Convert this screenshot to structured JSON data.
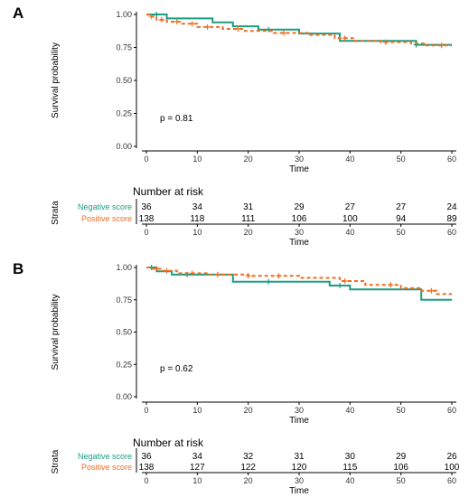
{
  "chart_data": [
    {
      "panel_label": "A",
      "type": "line",
      "subtype": "kaplan-meier",
      "xlabel": "Time",
      "ylabel": "Survival probability",
      "xlim": [
        0,
        60
      ],
      "ylim": [
        0,
        1
      ],
      "x_ticks": [
        0,
        10,
        20,
        30,
        40,
        50,
        60
      ],
      "y_ticks": [
        "0.00",
        "0.25",
        "0.50",
        "0.75",
        "1.00"
      ],
      "grid": false,
      "annotation": "p = 0.81",
      "series": [
        {
          "name": "Negative score",
          "color": "#1a9e82",
          "line_style": "solid",
          "steps": [
            [
              0,
              1.0
            ],
            [
              4,
              0.97
            ],
            [
              13,
              0.94
            ],
            [
              17,
              0.91
            ],
            [
              22,
              0.885
            ],
            [
              30,
              0.855
            ],
            [
              38,
              0.8
            ],
            [
              53,
              0.77
            ],
            [
              60,
              0.77
            ]
          ],
          "censor_x": [
            2,
            24,
            53
          ]
        },
        {
          "name": "Positive score",
          "color": "#f26d21",
          "line_style": "dashed",
          "steps": [
            [
              0,
              1.0
            ],
            [
              1,
              0.985
            ],
            [
              2,
              0.96
            ],
            [
              4,
              0.945
            ],
            [
              7,
              0.93
            ],
            [
              10,
              0.905
            ],
            [
              15,
              0.89
            ],
            [
              19,
              0.875
            ],
            [
              25,
              0.86
            ],
            [
              32,
              0.845
            ],
            [
              37,
              0.82
            ],
            [
              41,
              0.8
            ],
            [
              46,
              0.79
            ],
            [
              52,
              0.78
            ],
            [
              55,
              0.765
            ],
            [
              60,
              0.765
            ]
          ],
          "censor_x": [
            1,
            3,
            6,
            9,
            12,
            18,
            27,
            39,
            47,
            58
          ]
        }
      ],
      "risk_table": {
        "title": "Number at risk",
        "strata_label": "Strata",
        "xlabel": "Time",
        "times": [
          0,
          10,
          20,
          30,
          40,
          50,
          60
        ],
        "rows": [
          {
            "name": "Negative score",
            "color": "#1a9e82",
            "counts": [
              "36",
              "34",
              "31",
              "29",
              "27",
              "27",
              "24"
            ]
          },
          {
            "name": "Positive score",
            "color": "#f26d21",
            "counts": [
              "138",
              "118",
              "111",
              "106",
              "100",
              "94",
              "89"
            ]
          }
        ]
      }
    },
    {
      "panel_label": "B",
      "type": "line",
      "subtype": "kaplan-meier",
      "xlabel": "Time",
      "ylabel": "Survival probability",
      "xlim": [
        0,
        60
      ],
      "ylim": [
        0,
        1
      ],
      "x_ticks": [
        0,
        10,
        20,
        30,
        40,
        50,
        60
      ],
      "y_ticks": [
        "0.00",
        "0.25",
        "0.50",
        "0.75",
        "1.00"
      ],
      "grid": false,
      "annotation": "p = 0.62",
      "series": [
        {
          "name": "Negative score",
          "color": "#1a9e82",
          "line_style": "solid",
          "steps": [
            [
              0,
              1.0
            ],
            [
              2,
              0.97
            ],
            [
              5,
              0.945
            ],
            [
              17,
              0.89
            ],
            [
              36,
              0.86
            ],
            [
              40,
              0.83
            ],
            [
              54,
              0.75
            ],
            [
              60,
              0.75
            ]
          ],
          "censor_x": [
            1,
            8,
            24,
            38
          ]
        },
        {
          "name": "Positive score",
          "color": "#f26d21",
          "line_style": "dashed",
          "steps": [
            [
              0,
              1.0
            ],
            [
              1,
              0.99
            ],
            [
              3,
              0.975
            ],
            [
              6,
              0.955
            ],
            [
              12,
              0.945
            ],
            [
              20,
              0.935
            ],
            [
              30,
              0.92
            ],
            [
              38,
              0.895
            ],
            [
              43,
              0.865
            ],
            [
              50,
              0.84
            ],
            [
              54,
              0.82
            ],
            [
              57,
              0.795
            ],
            [
              60,
              0.795
            ]
          ],
          "censor_x": [
            2,
            4,
            9,
            14,
            20,
            26,
            39,
            48,
            56
          ]
        }
      ],
      "risk_table": {
        "title": "Number at risk",
        "strata_label": "Strata",
        "xlabel": "Time",
        "times": [
          0,
          10,
          20,
          30,
          40,
          50,
          60
        ],
        "rows": [
          {
            "name": "Negative score",
            "color": "#1a9e82",
            "counts": [
              "36",
              "34",
              "32",
              "31",
              "30",
              "29",
              "26"
            ]
          },
          {
            "name": "Positive score",
            "color": "#f26d21",
            "counts": [
              "138",
              "127",
              "122",
              "120",
              "115",
              "106",
              "100"
            ]
          }
        ]
      }
    }
  ]
}
